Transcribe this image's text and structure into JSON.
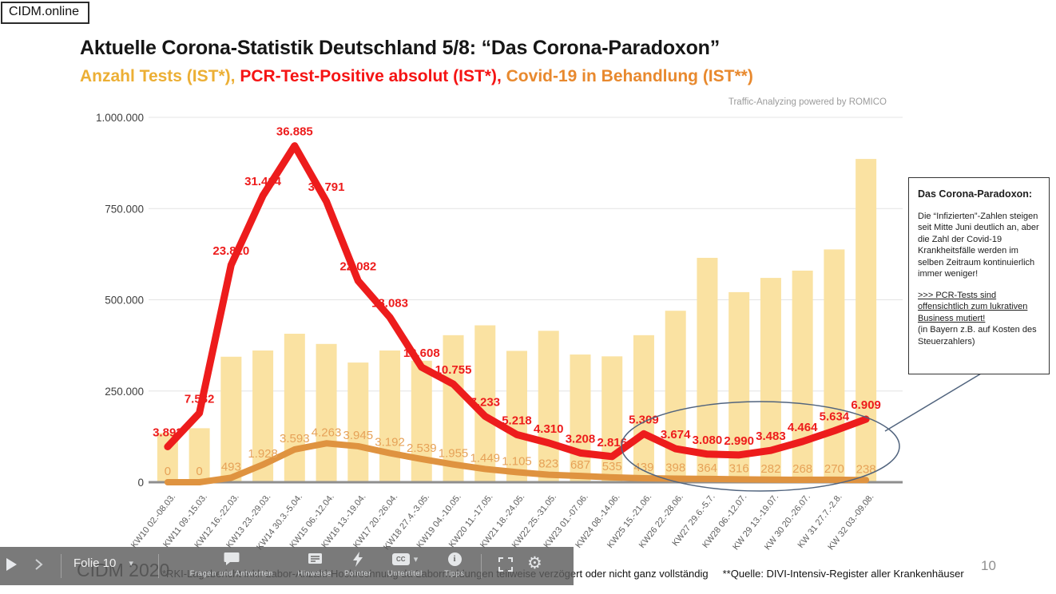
{
  "brand": {
    "logo": "CIDM.online"
  },
  "header": {
    "title": "Aktuelle Corona-Statistik Deutschland 5/8: “Das Corona-Paradoxon”",
    "subtitle_parts": [
      {
        "text": "Anzahl Tests (IST*)",
        "color": "#ECAF35"
      },
      {
        "text": "PCR-Test-Positive absolut (IST*)",
        "color": "#F51414"
      },
      {
        "text": "Covid-19 in Behandlung (IST**)",
        "color": "#E8892E"
      }
    ],
    "watermark": "Traffic-Analyzing powered by ROMICO"
  },
  "chart_data": {
    "type": "bar",
    "title": "Aktuelle Corona-Statistik Deutschland 5/8",
    "categories": [
      "KW10 02.-08.03.",
      "KW11 09.-15.03.",
      "KW12 16.-22.03.",
      "KW13 23.-29.03.",
      "KW14 30.3.-5.04.",
      "KW15 06.-12.04.",
      "KW16 13.-19.04.",
      "KW17 20.-26.04.",
      "KW18 27.4.-3.05.",
      "KW19 04.-10.05.",
      "KW20 11.-17.05.",
      "KW21 18.-24.05.",
      "KW22 25.-31.05.",
      "KW23 01.-07.06.",
      "KW24 08.-14.06.",
      "KW25 15.-21.06.",
      "KW26 22.-28.06.",
      "KW27 29.6.-5.7.",
      "KW28 06.-12.07.",
      "KW 29 13.-19.07.",
      "KW 30 20.-26.07.",
      "KW 31 27.7.-2.8.",
      "KW 32 03.-09.08."
    ],
    "series": [
      {
        "name": "Anzahl Tests (IST*)",
        "kind": "bar",
        "color": "#FAE2A2",
        "values": [
          135000,
          148000,
          344000,
          361000,
          407000,
          379000,
          328000,
          361000,
          333000,
          403000,
          430000,
          360000,
          415000,
          350000,
          345000,
          403000,
          470000,
          615000,
          521000,
          560000,
          580000,
          638000,
          886000
        ]
      },
      {
        "name": "PCR-Test-Positive absolut (IST*)",
        "kind": "line",
        "color": "#ED1C1C",
        "label_color": "#ED1C1C",
        "values": [
          3892,
          7582,
          23820,
          31414,
          36885,
          30791,
          22082,
          18083,
          12608,
          10755,
          7233,
          5218,
          4310,
          3208,
          2816,
          5309,
          3674,
          3080,
          2990,
          3483,
          4464,
          5634,
          6909
        ],
        "labels": [
          "3.892",
          "7.582",
          "23.820",
          "31.414",
          "36.885",
          "30.791",
          "22.082",
          "18.083",
          "12.608",
          "10.755",
          "7.233",
          "5.218",
          "4.310",
          "3.208",
          "2.816",
          "5.309",
          "3.674",
          "3.080",
          "2.990",
          "3.483",
          "4.464",
          "5.634",
          "6.909"
        ]
      },
      {
        "name": "Covid-19 in Behandlung (IST**)",
        "kind": "line",
        "color": "#DF9340",
        "label_color": "#E6A258",
        "values": [
          0,
          0,
          493,
          1928,
          3593,
          4263,
          3945,
          3192,
          2539,
          1955,
          1449,
          1105,
          823,
          687,
          535,
          439,
          398,
          364,
          316,
          282,
          268,
          270,
          238
        ],
        "labels": [
          "0",
          "0",
          "493",
          "1.928",
          "3.593",
          "4.263",
          "3.945",
          "3.192",
          "2.539",
          "1.955",
          "1.449",
          "1.105",
          "823",
          "687",
          "535",
          "439",
          "398",
          "364",
          "316",
          "282",
          "268",
          "270",
          "238"
        ]
      }
    ],
    "y_axis": {
      "max": 1000000,
      "ticks": [
        {
          "label": "1.000.000",
          "value": 1000000
        },
        {
          "label": "750.000",
          "value": 750000
        },
        {
          "label": "500.000",
          "value": 500000
        },
        {
          "label": "250.000",
          "value": 250000
        },
        {
          "label": "0",
          "value": 0
        }
      ]
    },
    "line_axis_max": 40000,
    "legend_position": "none",
    "grid": true
  },
  "annotation_box": {
    "heading": "Das Corona-Paradoxon:",
    "body": "Die “Infizierten”-Zahlen steigen seit Mitte Juni deutlich an, aber die Zahl der Covid-19 Krankheitsfälle werden im selben Zeitraum kontinuierlich immer weniger!",
    "emphasis": ">>> PCR-Tests sind offensichtlich zum lukrativen Business mutiert!",
    "note": "(in Bayern z.B. auf Kosten des Steuerzahlers)"
  },
  "toolbar": {
    "slide_label": "Folie 10",
    "items": [
      {
        "label": "Fragen und Antworten"
      },
      {
        "label": "Hinweise"
      },
      {
        "label": "Pointer"
      },
      {
        "label": "Untertitel"
      },
      {
        "label": "Tipps"
      }
    ],
    "cc_text": "CC",
    "info_text": "i"
  },
  "footer": {
    "brand": "CIDM 2020",
    "note1": "*RKI-Lagebericht inkl. Labor-Anzahl-Hochrechnung da Labormeldungen teilweise verzögert oder nicht ganz vollständig",
    "note2": "**Quelle: DIVI-Intensiv-Register aller Krankenhäuser",
    "page_number": "10"
  }
}
